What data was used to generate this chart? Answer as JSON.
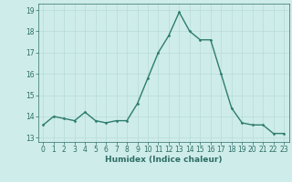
{
  "x": [
    0,
    1,
    2,
    3,
    4,
    5,
    6,
    7,
    8,
    9,
    10,
    11,
    12,
    13,
    14,
    15,
    16,
    17,
    18,
    19,
    20,
    21,
    22,
    23
  ],
  "y": [
    13.6,
    14.0,
    13.9,
    13.8,
    14.2,
    13.8,
    13.7,
    13.8,
    13.8,
    14.6,
    15.8,
    17.0,
    17.8,
    18.9,
    18.0,
    17.6,
    17.6,
    16.0,
    14.4,
    13.7,
    13.6,
    13.6,
    13.2,
    13.2
  ],
  "line_color": "#2d7d6e",
  "marker": "D",
  "marker_size": 1.5,
  "linewidth": 1.0,
  "xlabel": "Humidex (Indice chaleur)",
  "xlim": [
    -0.5,
    23.5
  ],
  "ylim": [
    12.8,
    19.3
  ],
  "yticks": [
    13,
    14,
    15,
    16,
    17,
    18,
    19
  ],
  "xticks": [
    0,
    1,
    2,
    3,
    4,
    5,
    6,
    7,
    8,
    9,
    10,
    11,
    12,
    13,
    14,
    15,
    16,
    17,
    18,
    19,
    20,
    21,
    22,
    23
  ],
  "bg_color": "#ceecea",
  "grid_color": "#b8dbd8",
  "tick_fontsize": 5.5,
  "xlabel_fontsize": 6.5,
  "label_color": "#2d6e65"
}
